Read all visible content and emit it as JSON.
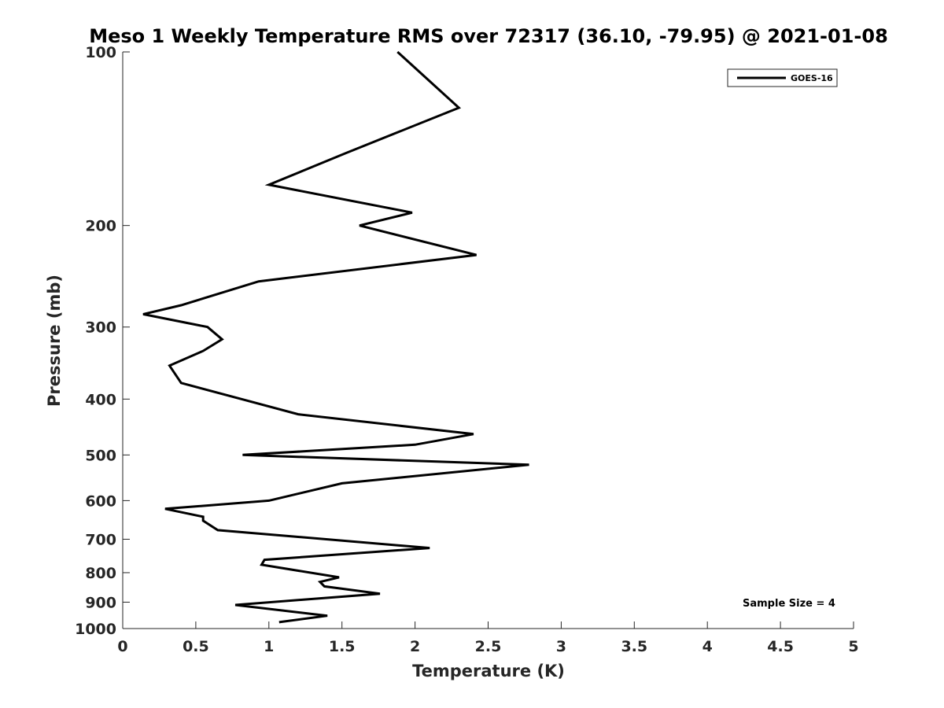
{
  "chart_data": {
    "type": "line",
    "title": "Meso 1 Weekly Temperature RMS over 72317 (36.10, -79.95) @ 2021-01-08",
    "xlabel": "Temperature (K)",
    "ylabel": "Pressure (mb)",
    "xlim": [
      0,
      5
    ],
    "ylim": [
      100,
      1000
    ],
    "y_scale": "log",
    "y_reversed": true,
    "x_ticks": [
      "0",
      "0.5",
      "1",
      "1.5",
      "2",
      "2.5",
      "3",
      "3.5",
      "4",
      "4.5",
      "5"
    ],
    "y_ticks": [
      "100",
      "200",
      "300",
      "400",
      "500",
      "600",
      "700",
      "800",
      "900",
      "1000"
    ],
    "grid": false,
    "legend_position": "top-right",
    "series": [
      {
        "name": "GOES-16",
        "color": "#000000",
        "points": [
          {
            "x": 1.88,
            "y": 100
          },
          {
            "x": 2.3,
            "y": 125
          },
          {
            "x": 1.52,
            "y": 150
          },
          {
            "x": 1.0,
            "y": 170
          },
          {
            "x": 1.98,
            "y": 190
          },
          {
            "x": 1.62,
            "y": 200
          },
          {
            "x": 2.42,
            "y": 225
          },
          {
            "x": 0.93,
            "y": 250
          },
          {
            "x": 0.4,
            "y": 275
          },
          {
            "x": 0.14,
            "y": 285
          },
          {
            "x": 0.58,
            "y": 300
          },
          {
            "x": 0.68,
            "y": 315
          },
          {
            "x": 0.55,
            "y": 330
          },
          {
            "x": 0.32,
            "y": 350
          },
          {
            "x": 0.4,
            "y": 375
          },
          {
            "x": 1.2,
            "y": 425
          },
          {
            "x": 2.4,
            "y": 460
          },
          {
            "x": 2.0,
            "y": 480
          },
          {
            "x": 0.82,
            "y": 500
          },
          {
            "x": 2.78,
            "y": 520
          },
          {
            "x": 1.5,
            "y": 560
          },
          {
            "x": 1.0,
            "y": 600
          },
          {
            "x": 0.29,
            "y": 620
          },
          {
            "x": 0.55,
            "y": 640
          },
          {
            "x": 0.55,
            "y": 650
          },
          {
            "x": 0.65,
            "y": 675
          },
          {
            "x": 2.1,
            "y": 725
          },
          {
            "x": 0.97,
            "y": 760
          },
          {
            "x": 0.95,
            "y": 775
          },
          {
            "x": 1.48,
            "y": 815
          },
          {
            "x": 1.35,
            "y": 830
          },
          {
            "x": 1.38,
            "y": 845
          },
          {
            "x": 1.76,
            "y": 870
          },
          {
            "x": 0.77,
            "y": 910
          },
          {
            "x": 1.4,
            "y": 950
          },
          {
            "x": 1.07,
            "y": 975
          }
        ]
      }
    ],
    "annotation": "Sample Size = 4"
  }
}
